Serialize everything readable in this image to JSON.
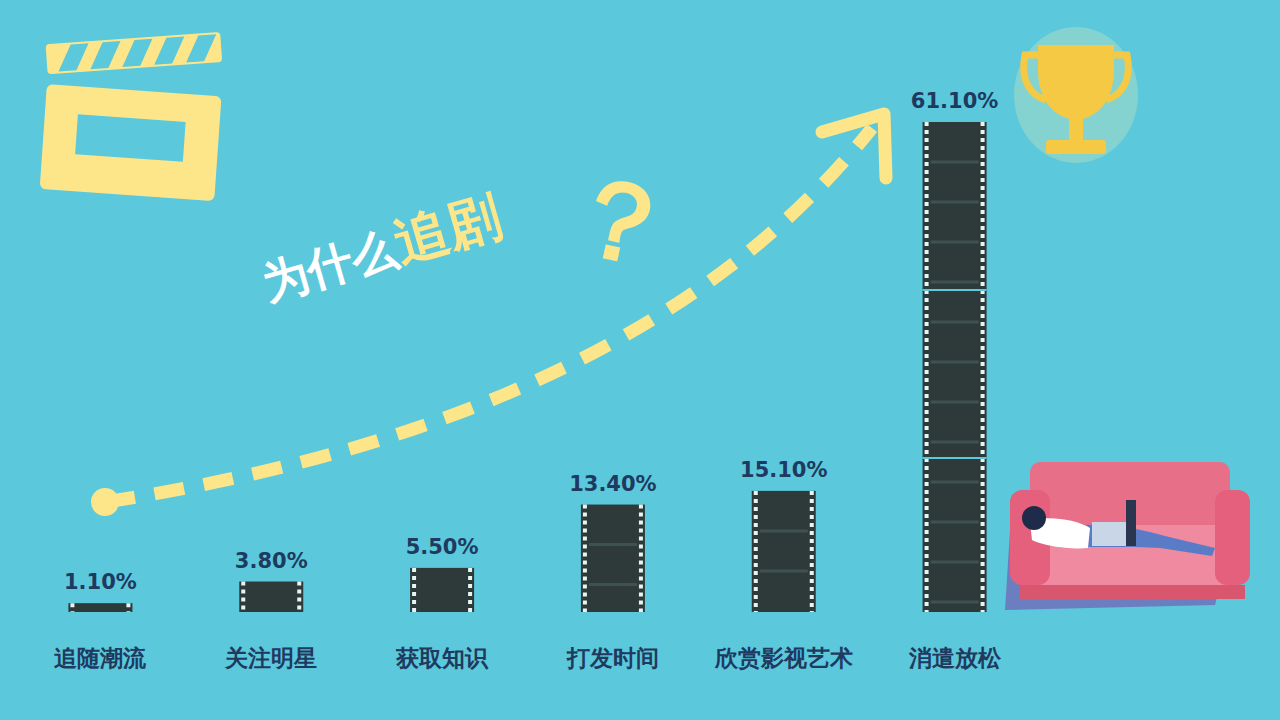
{
  "chart_data": {
    "type": "bar",
    "title": "为什么追剧",
    "annotations": [
      "？"
    ],
    "categories": [
      "追随潮流",
      "关注明星",
      "获取知识",
      "打发时间",
      "欣赏影视艺术",
      "消遣放松"
    ],
    "values": [
      1.1,
      3.8,
      5.5,
      13.4,
      15.1,
      61.1
    ],
    "value_labels": [
      "1.10%",
      "3.80%",
      "5.50%",
      "13.40%",
      "15.10%",
      "61.10%"
    ],
    "color": "#2e3a3a",
    "ylim": [
      0,
      61.1
    ],
    "data_labels": true,
    "tick_labels": "x",
    "grid": false
  }
}
